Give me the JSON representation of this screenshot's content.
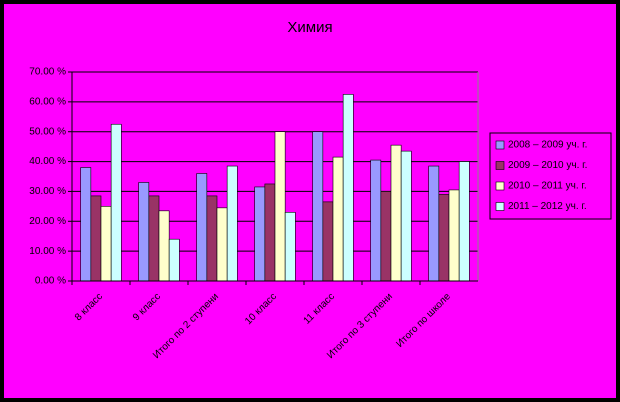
{
  "chart_data": {
    "type": "bar",
    "title": "Химия",
    "categories": [
      "8 класс",
      "9 класс",
      "Итого по 2 ступени",
      "10 класс",
      "11 класс",
      "Итого по 3 ступени",
      "Итого по школе"
    ],
    "series": [
      {
        "name": "2008 – 2009 уч. г.",
        "color": "#9999ff",
        "values": [
          38,
          33,
          36,
          31.5,
          50,
          40.5,
          38.5
        ]
      },
      {
        "name": "2009 – 2010 уч. г.",
        "color": "#993366",
        "values": [
          28.5,
          28.5,
          28.5,
          32.5,
          26.5,
          30,
          29
        ]
      },
      {
        "name": "2010 – 2011 уч. г.",
        "color": "#ffffcc",
        "values": [
          25,
          23.5,
          24.5,
          50,
          41.5,
          45.5,
          30.5
        ]
      },
      {
        "name": "2011 – 2012 уч. г.",
        "color": "#ccffff",
        "values": [
          52.5,
          14,
          38.5,
          23,
          62.5,
          43.5,
          40
        ]
      }
    ],
    "ylim": [
      0,
      70
    ],
    "yticks": [
      {
        "value": 0,
        "label": "0.00 %"
      },
      {
        "value": 10,
        "label": "10.00 %"
      },
      {
        "value": 20,
        "label": "20.00 %"
      },
      {
        "value": 30,
        "label": "30.00 %"
      },
      {
        "value": 40,
        "label": "40.00 %"
      },
      {
        "value": 50,
        "label": "50.00 %"
      },
      {
        "value": 60,
        "label": "60.00 %"
      },
      {
        "value": 70,
        "label": "70.00 %"
      }
    ],
    "grid": true,
    "legend": "right"
  }
}
